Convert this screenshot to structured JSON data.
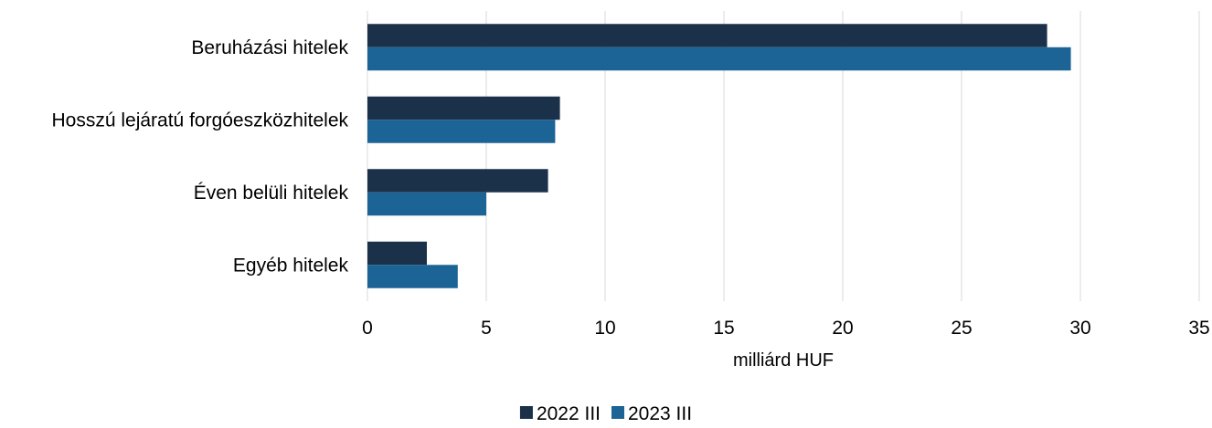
{
  "chart_data": {
    "type": "bar",
    "orientation": "horizontal",
    "categories": [
      "Beruházási hitelek",
      "Hosszú lejáratú forgóeszközhitelek",
      "Éven belüli hitelek",
      "Egyéb hitelek"
    ],
    "series": [
      {
        "name": "2022 III",
        "color": "#1b3149",
        "values": [
          28.6,
          8.1,
          7.6,
          2.5
        ]
      },
      {
        "name": "2023 III",
        "color": "#1d6496",
        "values": [
          29.6,
          7.9,
          5.0,
          3.8
        ]
      }
    ],
    "xlabel": "milliárd HUF",
    "ylabel": "",
    "xlim": [
      0,
      35
    ],
    "xticks": [
      0,
      5,
      10,
      15,
      20,
      25,
      30,
      35
    ],
    "grid": true,
    "grid_color": "#d9d9d9",
    "legend_position": "bottom"
  }
}
